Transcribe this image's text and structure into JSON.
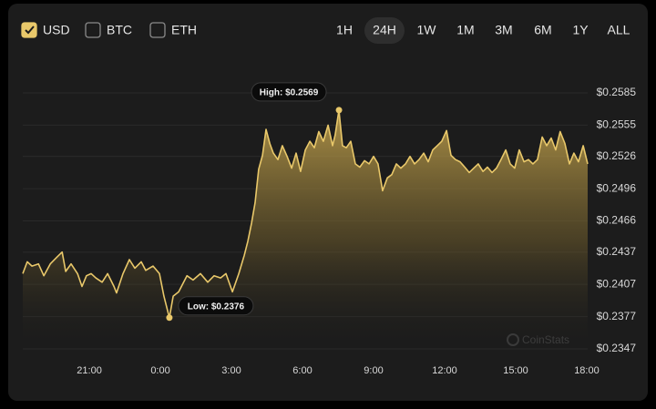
{
  "controls": {
    "currencies": [
      {
        "label": "USD",
        "checked": true
      },
      {
        "label": "BTC",
        "checked": false
      },
      {
        "label": "ETH",
        "checked": false
      }
    ],
    "ranges": [
      {
        "label": "1H",
        "active": false
      },
      {
        "label": "24H",
        "active": true
      },
      {
        "label": "1W",
        "active": false
      },
      {
        "label": "1M",
        "active": false
      },
      {
        "label": "3M",
        "active": false
      },
      {
        "label": "6M",
        "active": false
      },
      {
        "label": "1Y",
        "active": false
      },
      {
        "label": "ALL",
        "active": false
      }
    ]
  },
  "watermark": "CoinStats",
  "chart_data": {
    "type": "line",
    "series": [
      {
        "name": "USD",
        "color": "#e9c86a",
        "x": [
          18.19,
          18.38,
          18.58,
          18.85,
          19.08,
          19.35,
          19.62,
          19.85,
          20.0,
          20.23,
          20.5,
          20.69,
          20.88,
          21.08,
          21.27,
          21.54,
          21.77,
          22.04,
          22.15,
          22.42,
          22.69,
          22.92,
          23.19,
          23.38,
          23.69,
          23.96,
          24.15,
          24.38,
          24.54,
          24.77,
          25.12,
          25.38,
          25.69,
          26.0,
          26.27,
          26.54,
          26.77,
          27.04,
          27.31,
          27.54,
          27.69,
          27.85,
          28.0,
          28.15,
          28.31,
          28.46,
          28.62,
          28.77,
          28.96,
          29.15,
          29.35,
          29.54,
          29.73,
          29.92,
          30.12,
          30.31,
          30.5,
          30.69,
          30.88,
          31.08,
          31.27,
          31.38,
          31.54,
          31.69,
          31.85,
          32.04,
          32.23,
          32.42,
          32.62,
          32.81,
          33.0,
          33.19,
          33.38,
          33.58,
          33.77,
          33.96,
          34.15,
          34.35,
          34.54,
          34.73,
          34.92,
          35.12,
          35.31,
          35.5,
          35.69,
          35.88,
          36.08,
          36.27,
          36.46,
          36.65,
          36.85,
          37.04,
          37.23,
          37.42,
          37.62,
          37.81,
          38.0,
          38.19,
          38.38,
          38.58,
          38.77,
          38.96,
          39.15,
          39.35,
          39.54,
          39.73,
          39.92,
          40.12,
          40.31,
          40.5,
          40.69,
          40.88,
          41.08,
          41.27,
          41.46,
          41.65,
          41.85,
          42.04
        ],
        "values": [
          0.2417,
          0.2428,
          0.2424,
          0.2426,
          0.2415,
          0.2426,
          0.2432,
          0.2437,
          0.2419,
          0.2426,
          0.2417,
          0.2405,
          0.2415,
          0.2417,
          0.2413,
          0.2409,
          0.2417,
          0.2405,
          0.2399,
          0.2417,
          0.243,
          0.2422,
          0.2428,
          0.242,
          0.2424,
          0.2417,
          0.2396,
          0.2376,
          0.2396,
          0.24,
          0.2415,
          0.2411,
          0.2417,
          0.2409,
          0.2415,
          0.2413,
          0.2417,
          0.24,
          0.2417,
          0.2434,
          0.2447,
          0.2464,
          0.2483,
          0.2514,
          0.2527,
          0.2551,
          0.2538,
          0.2529,
          0.2523,
          0.2536,
          0.2526,
          0.2515,
          0.2529,
          0.2512,
          0.2532,
          0.254,
          0.2534,
          0.2549,
          0.254,
          0.2555,
          0.2536,
          0.2546,
          0.2569,
          0.2536,
          0.2534,
          0.254,
          0.2519,
          0.2516,
          0.2522,
          0.2519,
          0.2526,
          0.2519,
          0.2494,
          0.2506,
          0.2509,
          0.2519,
          0.2515,
          0.2519,
          0.2526,
          0.2519,
          0.2523,
          0.2529,
          0.2521,
          0.2532,
          0.2536,
          0.254,
          0.255,
          0.2527,
          0.2523,
          0.2521,
          0.2516,
          0.2511,
          0.2515,
          0.2519,
          0.2512,
          0.2516,
          0.2511,
          0.2515,
          0.2523,
          0.2532,
          0.2519,
          0.2515,
          0.2532,
          0.2521,
          0.2523,
          0.2519,
          0.2523,
          0.2544,
          0.2536,
          0.2543,
          0.2532,
          0.2549,
          0.2538,
          0.2519,
          0.2529,
          0.2521,
          0.2536,
          0.2519
        ]
      }
    ],
    "xlim": [
      18.19,
      42.04
    ],
    "xticks": [
      {
        "value": 21,
        "label": "21:00"
      },
      {
        "value": 24,
        "label": "0:00"
      },
      {
        "value": 27,
        "label": "3:00"
      },
      {
        "value": 30,
        "label": "6:00"
      },
      {
        "value": 33,
        "label": "9:00"
      },
      {
        "value": 36,
        "label": "12:00"
      },
      {
        "value": 39,
        "label": "15:00"
      },
      {
        "value": 42,
        "label": "18:00"
      }
    ],
    "ylim": [
      0.2347,
      0.2585
    ],
    "yticks": [
      {
        "value": 0.2585,
        "label": "$0.2585"
      },
      {
        "value": 0.2555,
        "label": "$0.2555"
      },
      {
        "value": 0.2526,
        "label": "$0.2526"
      },
      {
        "value": 0.2496,
        "label": "$0.2496"
      },
      {
        "value": 0.2466,
        "label": "$0.2466"
      },
      {
        "value": 0.2437,
        "label": "$0.2437"
      },
      {
        "value": 0.2407,
        "label": "$0.2407"
      },
      {
        "value": 0.2377,
        "label": "$0.2377"
      },
      {
        "value": 0.2347,
        "label": "$0.2347"
      }
    ],
    "grid": true,
    "annotations": [
      {
        "text": "High: $0.2569",
        "at": "max"
      },
      {
        "text": "Low: $0.2376",
        "at": "min"
      }
    ]
  }
}
